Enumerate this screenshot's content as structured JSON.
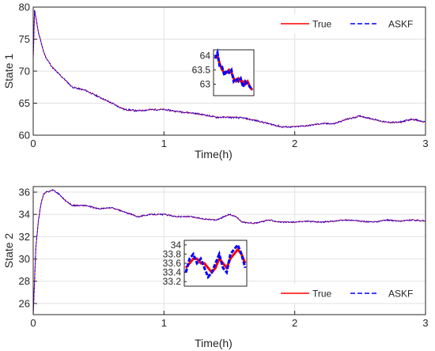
{
  "chart_data": [
    {
      "type": "line",
      "xlabel": "Time(h)",
      "ylabel": "State 1",
      "xlim": [
        0,
        3
      ],
      "ylim": [
        60,
        80
      ],
      "xticks": [
        "0",
        "1",
        "2",
        "3"
      ],
      "yticks": [
        "60",
        "65",
        "70",
        "75",
        "80"
      ],
      "grid": true,
      "legend": {
        "position": "top-right",
        "entries": [
          "True",
          "ASKF"
        ]
      },
      "series": [
        {
          "name": "True",
          "color": "#ff0000",
          "style": "solid",
          "x": [
            0,
            0.01,
            0.02,
            0.04,
            0.06,
            0.08,
            0.1,
            0.15,
            0.2,
            0.25,
            0.3,
            0.4,
            0.5,
            0.6,
            0.7,
            0.8,
            0.9,
            1.0,
            1.1,
            1.2,
            1.3,
            1.4,
            1.5,
            1.6,
            1.7,
            1.8,
            1.9,
            2.0,
            2.1,
            2.2,
            2.3,
            2.4,
            2.5,
            2.6,
            2.7,
            2.8,
            2.9,
            3.0
          ],
          "y": [
            72,
            79.5,
            78.5,
            76,
            74.5,
            73,
            72,
            70.5,
            69.5,
            68.5,
            67.5,
            67,
            66,
            65,
            64,
            63.8,
            64,
            64,
            63.7,
            63.5,
            63.2,
            62.8,
            62.8,
            62.7,
            62.3,
            61.8,
            61.3,
            61.3,
            61.5,
            61.8,
            61.8,
            62.5,
            63,
            62.5,
            62,
            62,
            62.5,
            62
          ]
        },
        {
          "name": "ASKF",
          "color": "#0000ff",
          "style": "dashed",
          "x": [
            0,
            0.01,
            0.02,
            0.04,
            0.06,
            0.08,
            0.1,
            0.15,
            0.2,
            0.25,
            0.3,
            0.4,
            0.5,
            0.6,
            0.7,
            0.8,
            0.9,
            1.0,
            1.1,
            1.2,
            1.3,
            1.4,
            1.5,
            1.6,
            1.7,
            1.8,
            1.9,
            2.0,
            2.1,
            2.2,
            2.3,
            2.4,
            2.5,
            2.6,
            2.7,
            2.8,
            2.9,
            3.0
          ],
          "y": [
            72,
            79.5,
            78.5,
            76,
            74.5,
            73,
            72,
            70.5,
            69.5,
            68.5,
            67.5,
            67,
            66,
            65,
            64,
            63.8,
            64,
            64,
            63.7,
            63.5,
            63.2,
            62.8,
            62.8,
            62.7,
            62.3,
            61.8,
            61.3,
            61.3,
            61.5,
            61.8,
            61.8,
            62.5,
            63,
            62.5,
            62,
            62,
            62.5,
            62
          ]
        }
      ],
      "inset": {
        "ylim": [
          62.6,
          64.2
        ],
        "yticks": [
          "63",
          "63.5",
          "64"
        ],
        "series": [
          {
            "name": "True",
            "values": [
              63.9,
              64.0,
              63.7,
              63.5,
              63.4,
              63.4,
              63.5,
              63.4,
              63.2,
              63.1,
              63.2,
              63.1,
              63.1,
              63.0,
              63.1,
              62.9,
              62.8
            ]
          },
          {
            "name": "ASKF",
            "values": [
              63.9,
              64.1,
              63.6,
              63.6,
              63.3,
              63.5,
              63.4,
              63.5,
              63.1,
              63.2,
              63.1,
              63.2,
              62.9,
              63.1,
              63.0,
              62.9,
              62.8
            ]
          }
        ]
      }
    },
    {
      "type": "line",
      "xlabel": "Time(h)",
      "ylabel": "State 2",
      "xlim": [
        0,
        3
      ],
      "ylim": [
        25,
        36.5
      ],
      "xticks": [
        "0",
        "1",
        "2",
        "3"
      ],
      "yticks": [
        "26",
        "28",
        "30",
        "32",
        "34",
        "36"
      ],
      "grid": true,
      "legend": {
        "position": "bottom-right",
        "entries": [
          "True",
          "ASKF"
        ]
      },
      "series": [
        {
          "name": "True",
          "color": "#ff0000",
          "style": "solid",
          "x": [
            0,
            0.01,
            0.02,
            0.04,
            0.06,
            0.08,
            0.1,
            0.15,
            0.2,
            0.25,
            0.3,
            0.4,
            0.5,
            0.6,
            0.7,
            0.8,
            0.9,
            1.0,
            1.1,
            1.2,
            1.3,
            1.4,
            1.5,
            1.55,
            1.6,
            1.7,
            1.8,
            1.9,
            2.0,
            2.1,
            2.2,
            2.3,
            2.4,
            2.5,
            2.6,
            2.7,
            2.8,
            2.9,
            3.0
          ],
          "y": [
            25,
            28,
            31,
            33.5,
            35,
            35.8,
            36,
            36.2,
            35.8,
            35.2,
            34.8,
            34.8,
            34.5,
            34.6,
            34.2,
            33.8,
            34,
            34,
            33.8,
            33.8,
            33.6,
            33.5,
            34,
            33.8,
            33.3,
            33.2,
            33.5,
            33.3,
            33.3,
            33.4,
            33.3,
            33.4,
            33.5,
            33.4,
            33.3,
            33.5,
            33.4,
            33.5,
            33.4
          ]
        },
        {
          "name": "ASKF",
          "color": "#0000ff",
          "style": "dashed",
          "x": [
            0,
            0.01,
            0.02,
            0.04,
            0.06,
            0.08,
            0.1,
            0.15,
            0.2,
            0.25,
            0.3,
            0.4,
            0.5,
            0.6,
            0.7,
            0.8,
            0.9,
            1.0,
            1.1,
            1.2,
            1.3,
            1.4,
            1.5,
            1.55,
            1.6,
            1.7,
            1.8,
            1.9,
            2.0,
            2.1,
            2.2,
            2.3,
            2.4,
            2.5,
            2.6,
            2.7,
            2.8,
            2.9,
            3.0
          ],
          "y": [
            25,
            28,
            31,
            33.5,
            35,
            35.8,
            36,
            36.2,
            35.8,
            35.2,
            34.8,
            34.8,
            34.5,
            34.6,
            34.2,
            33.8,
            34,
            34,
            33.8,
            33.8,
            33.6,
            33.5,
            34.1,
            33.9,
            33.3,
            33.2,
            33.5,
            33.3,
            33.3,
            33.4,
            33.3,
            33.4,
            33.5,
            33.4,
            33.3,
            33.5,
            33.4,
            33.6,
            33.4
          ]
        }
      ],
      "inset": {
        "ylim": [
          33.1,
          34.1
        ],
        "yticks": [
          "33.2",
          "33.4",
          "33.6",
          "33.8",
          "34"
        ],
        "series": [
          {
            "name": "True",
            "values": [
              33.5,
              33.6,
              33.7,
              33.7,
              33.6,
              33.6,
              33.5,
              33.4,
              33.5,
              33.7,
              33.6,
              33.5,
              33.7,
              33.8,
              33.9,
              33.8,
              33.6
            ]
          },
          {
            "name": "ASKF",
            "values": [
              33.4,
              33.7,
              33.8,
              33.6,
              33.7,
              33.5,
              33.3,
              33.4,
              33.6,
              33.8,
              33.5,
              33.4,
              33.8,
              33.9,
              34.0,
              33.8,
              33.5
            ]
          }
        ]
      }
    }
  ]
}
